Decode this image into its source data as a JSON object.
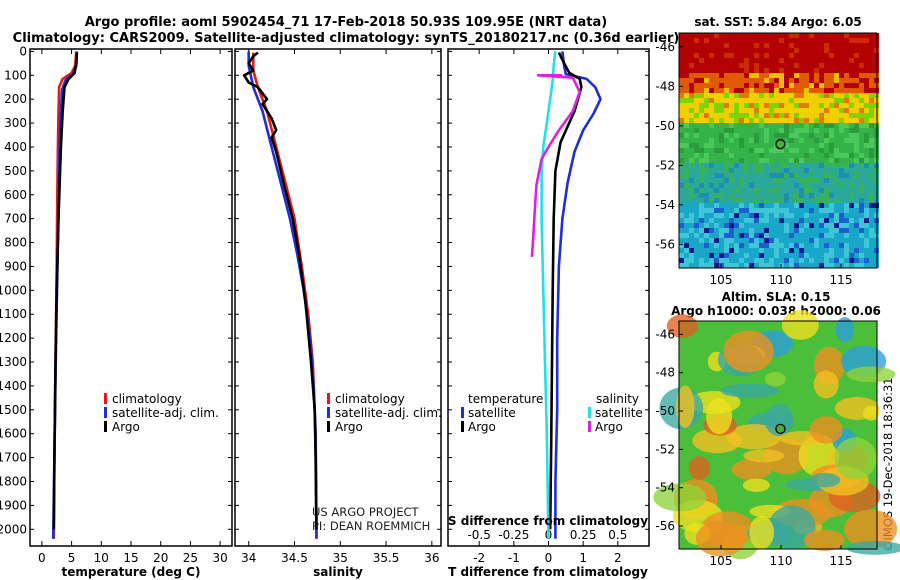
{
  "header": {
    "title_line1": "Argo profile: aoml 5902454_71 17-Feb-2018 50.93S 109.95E (NRT data)",
    "title_line2": "Climatology: CARS2009. Satellite-adjusted climatology: synTS_20180217.nc (0.36d earlier)"
  },
  "credits": {
    "project": "US ARGO PROJECT",
    "pi": "PI: DEAN ROEMMICH",
    "imos": "©IMOS 19-Dec-2018 18:36:31"
  },
  "colors": {
    "climatology": "#e41a1c",
    "satellite_adj": "#1f2fd6",
    "argo": "#000000",
    "sat_cyan": "#22e0e8",
    "argo_magenta": "#e020e0"
  },
  "chart_data": [
    {
      "type": "line",
      "title": "temperature profile",
      "xlabel": "temperature (deg C)",
      "ylabel": "depth",
      "xlim": [
        -2,
        32
      ],
      "ylim": [
        2070,
        -10
      ],
      "xticks": [
        0,
        5,
        10,
        15,
        20,
        25,
        30
      ],
      "yticks": [
        0,
        100,
        200,
        300,
        400,
        500,
        600,
        700,
        800,
        900,
        1000,
        1100,
        1200,
        1300,
        1400,
        1500,
        1600,
        1700,
        1800,
        1900,
        2000
      ],
      "legend": [
        "climatology",
        "satellite-adj. clim.",
        "Argo"
      ],
      "series": [
        {
          "name": "climatology",
          "color": "#e41a1c",
          "points": [
            [
              5.8,
              0
            ],
            [
              5.6,
              60
            ],
            [
              5.0,
              90
            ],
            [
              3.5,
              115
            ],
            [
              2.9,
              150
            ],
            [
              2.8,
              250
            ],
            [
              2.7,
              400
            ],
            [
              2.6,
              600
            ],
            [
              2.5,
              900
            ],
            [
              2.3,
              1300
            ],
            [
              2.1,
              1700
            ],
            [
              2.0,
              2040
            ]
          ]
        },
        {
          "name": "satellite-adj. clim.",
          "color": "#1f2fd6",
          "points": [
            [
              5.9,
              0
            ],
            [
              5.8,
              60
            ],
            [
              5.2,
              95
            ],
            [
              4.0,
              120
            ],
            [
              3.4,
              160
            ],
            [
              3.1,
              300
            ],
            [
              2.9,
              500
            ],
            [
              2.7,
              800
            ],
            [
              2.4,
              1200
            ],
            [
              2.1,
              1700
            ],
            [
              1.9,
              2040
            ]
          ]
        },
        {
          "name": "Argo",
          "color": "#000000",
          "points": [
            [
              5.9,
              5
            ],
            [
              5.8,
              50
            ],
            [
              5.5,
              90
            ],
            [
              4.5,
              115
            ],
            [
              3.8,
              150
            ],
            [
              3.5,
              250
            ],
            [
              3.2,
              400
            ],
            [
              2.8,
              700
            ],
            [
              2.5,
              1000
            ],
            [
              2.3,
              1300
            ],
            [
              2.1,
              1700
            ],
            [
              2.0,
              2000
            ]
          ]
        }
      ]
    },
    {
      "type": "line",
      "title": "salinity profile",
      "xlabel": "salinity",
      "xlim": [
        33.85,
        36.1
      ],
      "ylim": [
        2070,
        -10
      ],
      "xticks": [
        34,
        34.5,
        35,
        35.5,
        36
      ],
      "legend": [
        "climatology",
        "satellite-adj. clim.",
        "Argo"
      ],
      "series": [
        {
          "name": "climatology",
          "color": "#e41a1c",
          "points": [
            [
              34.05,
              5
            ],
            [
              34.05,
              80
            ],
            [
              34.1,
              150
            ],
            [
              34.2,
              250
            ],
            [
              34.3,
              400
            ],
            [
              34.4,
              550
            ],
            [
              34.5,
              700
            ],
            [
              34.58,
              900
            ],
            [
              34.65,
              1100
            ],
            [
              34.7,
              1300
            ],
            [
              34.73,
              1600
            ],
            [
              34.74,
              2040
            ]
          ]
        },
        {
          "name": "satellite-adj. clim.",
          "color": "#1f2fd6",
          "points": [
            [
              34.0,
              0
            ],
            [
              34.0,
              60
            ],
            [
              34.05,
              150
            ],
            [
              34.15,
              250
            ],
            [
              34.25,
              400
            ],
            [
              34.35,
              550
            ],
            [
              34.45,
              700
            ],
            [
              34.53,
              850
            ],
            [
              34.6,
              1000
            ],
            [
              34.67,
              1200
            ],
            [
              34.71,
              1400
            ],
            [
              34.73,
              1600
            ],
            [
              34.74,
              2040
            ]
          ]
        },
        {
          "name": "Argo",
          "color": "#000000",
          "points": [
            [
              34.1,
              5
            ],
            [
              34.05,
              20
            ],
            [
              34.0,
              50
            ],
            [
              34.05,
              80
            ],
            [
              33.95,
              100
            ],
            [
              34.0,
              130
            ],
            [
              34.1,
              150
            ],
            [
              34.2,
              200
            ],
            [
              34.15,
              220
            ],
            [
              34.25,
              280
            ],
            [
              34.3,
              330
            ],
            [
              34.25,
              360
            ],
            [
              34.3,
              420
            ],
            [
              34.38,
              550
            ],
            [
              34.48,
              700
            ],
            [
              34.55,
              850
            ],
            [
              34.62,
              1050
            ],
            [
              34.68,
              1300
            ],
            [
              34.72,
              1500
            ],
            [
              34.73,
              1700
            ],
            [
              34.74,
              2000
            ]
          ]
        }
      ]
    },
    {
      "type": "line",
      "title": "difference from climatology",
      "xlabel": "T difference from climatology",
      "xlabel2": "S difference from climatology",
      "xlim": [
        -2.9,
        2.9
      ],
      "ylim": [
        2070,
        -10
      ],
      "xticks": [
        -2,
        -1,
        0,
        1,
        2
      ],
      "xticks_secondary": [
        "-0.5",
        "-0.25",
        "0",
        "0.25",
        "0.5"
      ],
      "legend_left_title": "temperature",
      "legend_right_title": "salinity",
      "legend": [
        "satellite",
        "Argo",
        "satellite",
        "Argo"
      ],
      "series": [
        {
          "name": "temperature satellite",
          "color": "#1f2fd6",
          "points": [
            [
              0.4,
              0
            ],
            [
              0.45,
              60
            ],
            [
              0.5,
              95
            ],
            [
              1.1,
              115
            ],
            [
              1.35,
              150
            ],
            [
              1.5,
              200
            ],
            [
              1.3,
              260
            ],
            [
              1.0,
              330
            ],
            [
              0.75,
              420
            ],
            [
              0.55,
              550
            ],
            [
              0.4,
              700
            ],
            [
              0.3,
              900
            ],
            [
              0.25,
              1200
            ],
            [
              0.25,
              1500
            ],
            [
              0.2,
              1800
            ],
            [
              0.2,
              2040
            ]
          ]
        },
        {
          "name": "temperature Argo",
          "color": "#000000",
          "points": [
            [
              0.3,
              5
            ],
            [
              0.45,
              50
            ],
            [
              0.6,
              90
            ],
            [
              0.9,
              115
            ],
            [
              0.95,
              150
            ],
            [
              0.75,
              250
            ],
            [
              0.35,
              380
            ],
            [
              0.2,
              500
            ],
            [
              0.15,
              700
            ],
            [
              0.12,
              1000
            ],
            [
              0.1,
              1300
            ],
            [
              0.08,
              1600
            ],
            [
              0.05,
              2000
            ]
          ]
        },
        {
          "name": "salinity satellite",
          "color": "#22e0e8",
          "points": [
            [
              0.2,
              0
            ],
            [
              0.15,
              60
            ],
            [
              0.12,
              120
            ],
            [
              0.05,
              200
            ],
            [
              -0.05,
              300
            ],
            [
              -0.15,
              400
            ],
            [
              -0.2,
              500
            ],
            [
              -0.2,
              700
            ],
            [
              -0.15,
              1000
            ],
            [
              -0.1,
              1300
            ],
            [
              -0.05,
              1600
            ],
            [
              0.0,
              2040
            ]
          ]
        },
        {
          "name": "salinity Argo",
          "color": "#e020e0",
          "points": [
            [
              0.4,
              100
            ],
            [
              -0.3,
              100
            ],
            [
              0.7,
              110
            ],
            [
              0.9,
              170
            ],
            [
              0.7,
              250
            ],
            [
              0.3,
              330
            ],
            [
              0.0,
              400
            ],
            [
              -0.2,
              450
            ],
            [
              -0.35,
              560
            ],
            [
              -0.4,
              680
            ],
            [
              -0.45,
              800
            ],
            [
              -0.48,
              860
            ]
          ]
        }
      ]
    },
    {
      "type": "heatmap",
      "title": "sat. SST: 5.84 Argo: 6.05",
      "x_range": [
        101.5,
        118
      ],
      "y_range": [
        -57.2,
        -45.3
      ],
      "xticks": [
        105,
        110,
        115
      ],
      "yticks": [
        -46,
        -48,
        -50,
        -52,
        -54,
        -56
      ],
      "marker": {
        "lon": 109.95,
        "lat": -50.93
      }
    },
    {
      "type": "heatmap",
      "title_line1": "Altim. SLA: 0.15",
      "title_line2": "Argo h1000: 0.038 h2000: 0.06",
      "x_range": [
        101.5,
        118
      ],
      "y_range": [
        -57.2,
        -45.3
      ],
      "xticks": [
        105,
        110,
        115
      ],
      "yticks": [
        -46,
        -48,
        -50,
        -52,
        -54,
        -56
      ],
      "marker": {
        "lon": 109.95,
        "lat": -50.93
      }
    }
  ]
}
